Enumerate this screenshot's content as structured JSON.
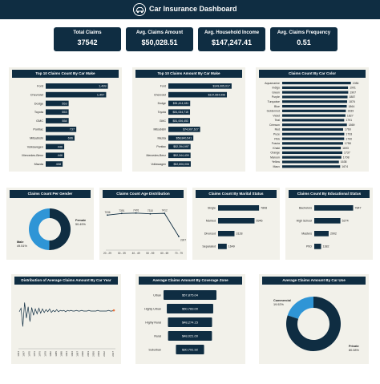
{
  "header": {
    "title": "Car Insurance Dashboard",
    "logo_icon": "car-icon"
  },
  "kpis": [
    {
      "label": "Total Claims",
      "value": "37542"
    },
    {
      "label": "Avg. Claims Amount",
      "value": "$50,028.51"
    },
    {
      "label": "Avg. Household Income",
      "value": "$147,247.41"
    },
    {
      "label": "Avg. Claims Frequency",
      "value": "0.51"
    }
  ],
  "colors": {
    "navy": "#0f2d42",
    "accent": "#2f95d6",
    "panel": "#f2f1ea",
    "marker": "#e8703a"
  },
  "chart_data": [
    {
      "id": "make_count",
      "type": "bar",
      "orientation": "horizontal",
      "title": "Top 10 Claims Count By Car Make",
      "categories": [
        "Ford",
        "Chevrolet",
        "Dodge",
        "Toyota",
        "GMC",
        "Pontiac",
        "Mitsubishi",
        "Volkswagen",
        "Mercedes-Benz",
        "Mazda"
      ],
      "values": [
        1499,
        1457,
        553,
        553,
        554,
        737,
        696,
        446,
        446,
        408
      ],
      "labels": [
        "1,499",
        "1,457",
        "553",
        "553",
        "554",
        "737",
        "696",
        "446",
        "446",
        "408"
      ],
      "xlim": [
        0,
        1700
      ]
    },
    {
      "id": "make_amount",
      "type": "bar",
      "orientation": "horizontal",
      "title": "Top 10 Claims Amount By Car Make",
      "categories": [
        "Ford",
        "Chevrolet",
        "Dodge",
        "Toyota",
        "GMC",
        "Mitsubishi",
        "Mazda",
        "Pontiac",
        "Mercedes-Benz",
        "Volkswagen"
      ],
      "values": [
        149005017,
        137894996,
        51414181,
        51034715,
        51006453,
        74907627,
        58840541,
        52394997,
        52344439,
        52806006
      ],
      "labels": [
        "$149,005,017",
        "$137,894,996",
        "$51,414,181",
        "$51,034,715",
        "$51,006,453",
        "$74,907,627",
        "$58,840,541",
        "$52,394,997",
        "$52,344,439",
        "$52,806,006"
      ],
      "xlim": [
        0,
        170000000
      ]
    },
    {
      "id": "color_count",
      "type": "bar",
      "orientation": "horizontal",
      "title": "Claims Count By Car Color",
      "categories": [
        "Aquamarine",
        "Indigo",
        "Green",
        "Purple",
        "Turquoise",
        "Blue",
        "Goldenrod",
        "Violet",
        "Teal",
        "Crimson",
        "Red",
        "Puce",
        "Pink",
        "Fuscia",
        "Khaki",
        "Orange",
        "Maroon",
        "Yellow",
        "Mauv"
      ],
      "values": [
        1984,
        1901,
        1907,
        1887,
        1876,
        1864,
        1839,
        1827,
        1791,
        1869,
        1760,
        1793,
        1790,
        1758,
        1693,
        1737,
        1708,
        1638,
        1674
      ],
      "labels": [
        "1984",
        "1901",
        "1907",
        "1887",
        "1876",
        "1864",
        "1839",
        "1827",
        "1791",
        "1869",
        "1760",
        "1793",
        "1790",
        "1758",
        "1693",
        "1737",
        "1708",
        "1638",
        "1674"
      ],
      "xlim": [
        0,
        2200
      ]
    },
    {
      "id": "gender",
      "type": "pie",
      "donut": true,
      "title": "Claims Count Per Gender",
      "categories": [
        "Female",
        "Male"
      ],
      "values": [
        50.49,
        49.51
      ],
      "labels": [
        "50.49%",
        "49.51%"
      ]
    },
    {
      "id": "age",
      "type": "line",
      "title": "Claims Count Age Distribution",
      "categories": [
        "20 - 29",
        "30 - 39",
        "40 - 49",
        "50 - 59",
        "60 - 69",
        "70 - 79"
      ],
      "values": [
        7036,
        7391,
        7476,
        7310,
        7412,
        2307
      ],
      "labels": [
        "7036",
        "7391",
        "7476",
        "7310",
        "7412",
        "2307"
      ],
      "ylim": [
        0,
        8500
      ]
    },
    {
      "id": "marital",
      "type": "bar",
      "orientation": "horizontal",
      "title": "Claims Count By Marital Status",
      "categories": [
        "Single",
        "Married",
        "Divorced",
        "Separated"
      ],
      "values": [
        7808,
        6946,
        3128,
        1649
      ],
      "labels": [
        "7808",
        "6946",
        "3128",
        "1649"
      ],
      "xlim": [
        0,
        11000
      ]
    },
    {
      "id": "education",
      "type": "bar",
      "orientation": "horizontal",
      "title": "Claims Count By Educational Status",
      "categories": [
        "Bachelors",
        "High School",
        "Masters",
        "PhD"
      ],
      "values": [
        7847,
        5274,
        2902,
        1382
      ],
      "labels": [
        "7847",
        "5274",
        "2902",
        "1382"
      ],
      "xlim": [
        0,
        11000
      ]
    },
    {
      "id": "year",
      "type": "line",
      "title": "Distribution of Average Claims Amount By Car Year",
      "categories": [
        "1964",
        "1967",
        "1970",
        "1973",
        "1976",
        "1979",
        "1982",
        "1985",
        "1988",
        "1991",
        "1994",
        "1997",
        "2000",
        "2003",
        "2006",
        "2009",
        "2012",
        "2017"
      ],
      "x": [
        1964,
        1965,
        1966,
        1967,
        1968,
        1969,
        1970,
        1971,
        1972,
        1973,
        1974,
        1975,
        1976,
        1977,
        1978,
        1979,
        1980,
        1981,
        1982,
        1983,
        1984,
        1985,
        1986,
        1987,
        1988,
        1989,
        1990,
        1991,
        1992,
        1993,
        1994,
        1995,
        1996,
        1997,
        1998,
        1999,
        2000,
        2001,
        2002,
        2003,
        2004,
        2005,
        2006,
        2007,
        2008,
        2009,
        2010,
        2011,
        2012,
        2013,
        2014,
        2015,
        2016,
        2017
      ],
      "values": [
        49,
        54,
        28,
        62,
        40,
        56,
        35,
        55,
        44,
        53,
        46,
        54,
        47,
        53,
        48,
        52,
        49,
        53,
        48,
        51,
        49,
        52,
        49,
        51,
        50,
        51,
        49,
        51,
        50,
        51,
        50,
        50,
        51,
        50,
        50,
        51,
        50,
        50,
        50,
        51,
        50,
        50,
        50,
        50,
        51,
        50,
        50,
        50,
        50,
        50,
        51,
        50,
        50,
        51
      ],
      "ylim": [
        0,
        75
      ]
    },
    {
      "id": "coverage",
      "type": "bar",
      "orientation": "horizontal",
      "style": "funnel",
      "title": "Average Claims Amount By Coverage Zone",
      "categories": [
        "Urban",
        "Highly Urban",
        "Highly Rural",
        "Rural",
        "Suburban"
      ],
      "values": [
        57875.04,
        50783.0,
        48274.15,
        48021.0,
        30791.92
      ],
      "labels": [
        "$57,875.04",
        "$50,783.00",
        "$48,274.15",
        "$48,021.00",
        "$30,791.92"
      ]
    },
    {
      "id": "car_use",
      "type": "pie",
      "donut": true,
      "title": "Average Claims Amount By Car Use",
      "categories": [
        "Commercial",
        "Private"
      ],
      "values": [
        19.92,
        80.08
      ],
      "labels": [
        "19.92%",
        "80.08%"
      ]
    }
  ]
}
